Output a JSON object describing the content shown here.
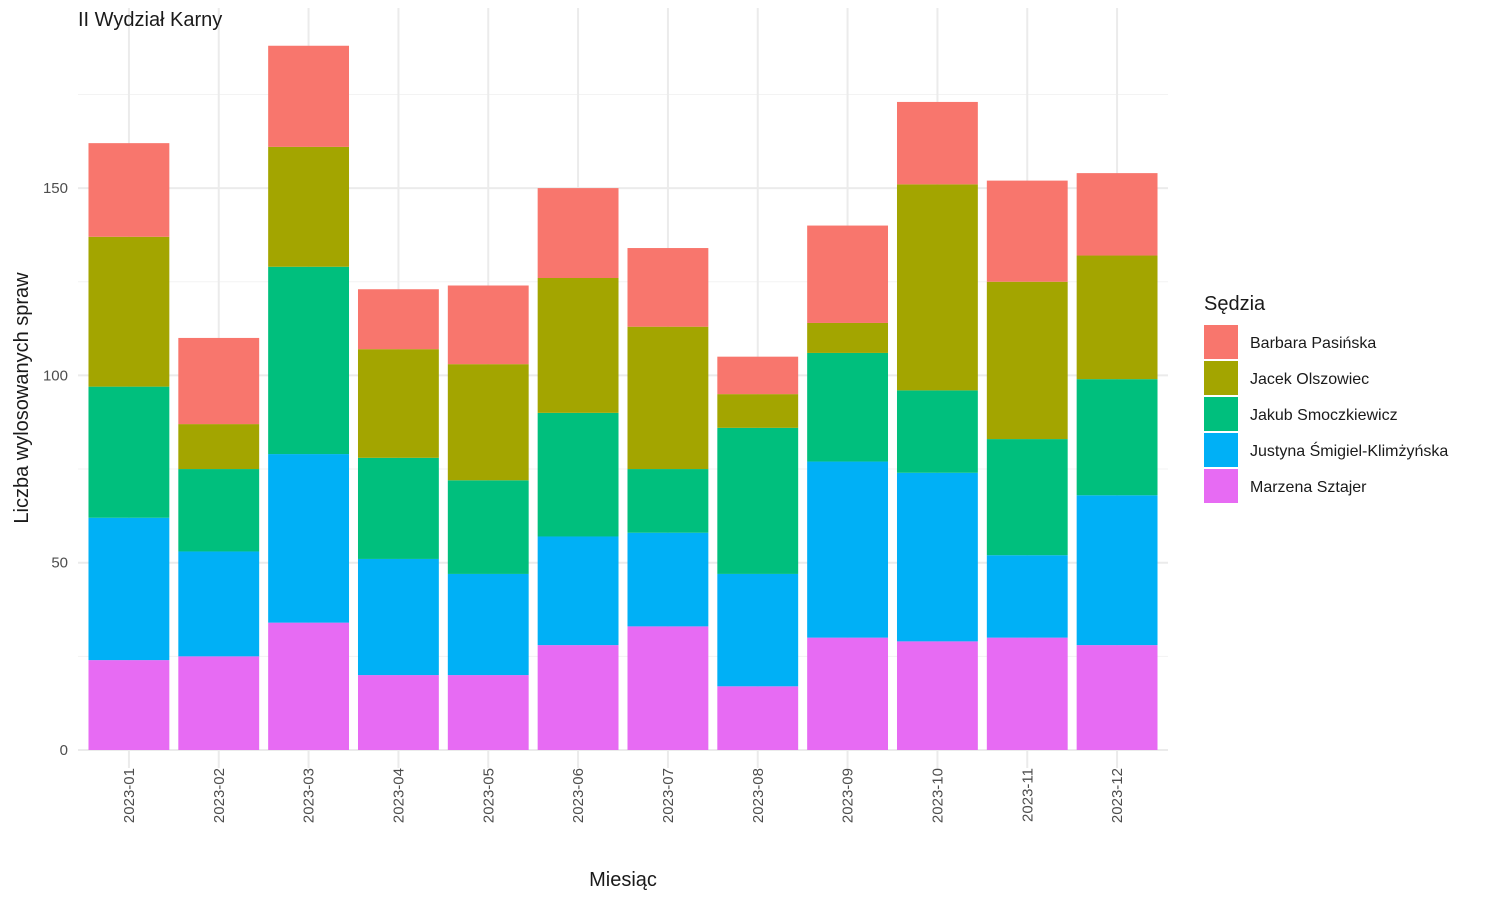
{
  "chart_data": {
    "type": "bar",
    "stacked": true,
    "title": "II Wydział Karny",
    "xlabel": "Miesiąc",
    "ylabel": "Liczba wylosowanych spraw",
    "ylim": [
      0,
      200
    ],
    "yticks": [
      0,
      50,
      100,
      150
    ],
    "grid": true,
    "legend_title": "Sędzia",
    "legend_position": "right",
    "categories": [
      "2023-01",
      "2023-02",
      "2023-03",
      "2023-04",
      "2023-05",
      "2023-06",
      "2023-07",
      "2023-08",
      "2023-09",
      "2023-10",
      "2023-11",
      "2023-12"
    ],
    "series": [
      {
        "name": "Barbara Pasińska",
        "color": "#F8766D",
        "values": [
          25,
          23,
          27,
          16,
          21,
          24,
          21,
          10,
          26,
          22,
          27,
          22
        ]
      },
      {
        "name": "Jacek Olszowiec",
        "color": "#A3A500",
        "values": [
          40,
          12,
          32,
          29,
          31,
          36,
          38,
          9,
          8,
          55,
          42,
          33
        ]
      },
      {
        "name": "Jakub Smoczkiewicz",
        "color": "#00BF7D",
        "values": [
          35,
          22,
          50,
          27,
          25,
          33,
          17,
          39,
          29,
          22,
          31,
          31
        ]
      },
      {
        "name": "Justyna Śmigiel-Klimżyńska",
        "color": "#00B0F6",
        "values": [
          38,
          28,
          45,
          31,
          27,
          29,
          25,
          30,
          47,
          45,
          22,
          40
        ]
      },
      {
        "name": "Marzena Sztajer",
        "color": "#E76BF3",
        "values": [
          24,
          25,
          34,
          20,
          20,
          28,
          33,
          17,
          30,
          29,
          30,
          28
        ]
      }
    ]
  }
}
